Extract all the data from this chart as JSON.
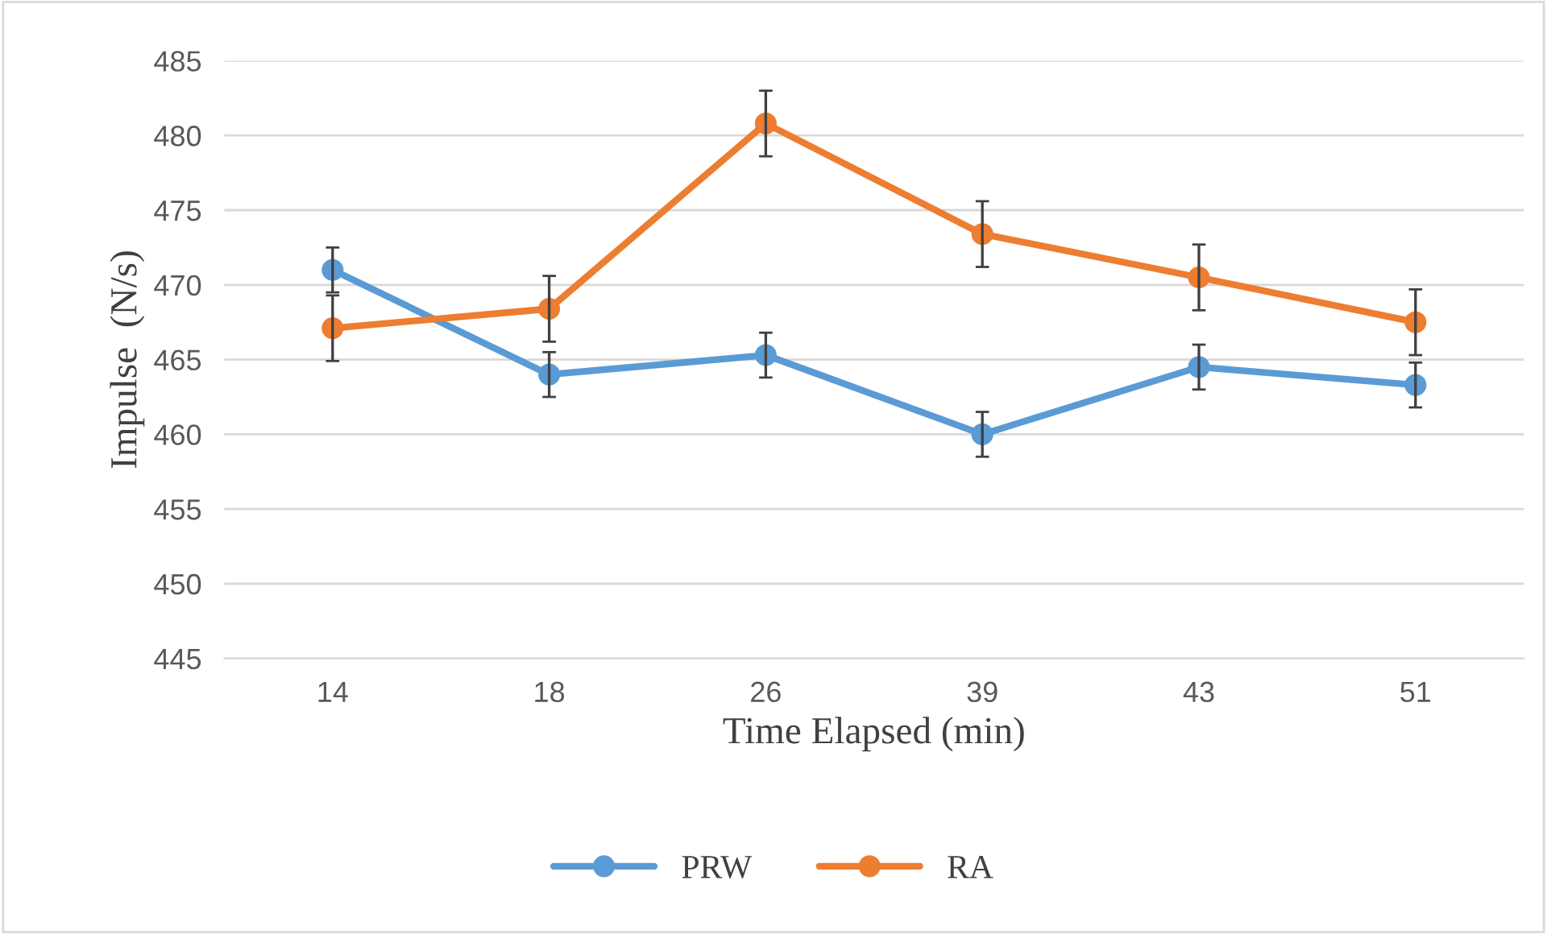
{
  "chart_data": {
    "type": "line",
    "xlabel": "Time Elapsed (min)",
    "ylabel": "Impulse  (N/s)",
    "categories": [
      "14",
      "18",
      "26",
      "39",
      "43",
      "51"
    ],
    "series": [
      {
        "name": "PRW",
        "color": "#5b9bd5",
        "values": [
          471.0,
          464.0,
          465.3,
          460.0,
          464.5,
          463.3
        ],
        "errors": [
          1.5,
          1.5,
          1.5,
          1.5,
          1.5,
          1.5
        ]
      },
      {
        "name": "RA",
        "color": "#ed7d31",
        "values": [
          467.1,
          468.4,
          480.8,
          473.4,
          470.5,
          467.5
        ],
        "errors": [
          2.2,
          2.2,
          2.2,
          2.2,
          2.2,
          2.2
        ]
      }
    ],
    "ylim": [
      445,
      485
    ],
    "yticks": [
      445,
      450,
      455,
      460,
      465,
      470,
      475,
      480,
      485
    ],
    "grid": "y",
    "legend": "bottom",
    "marker": "circle",
    "line_style": "solid"
  }
}
